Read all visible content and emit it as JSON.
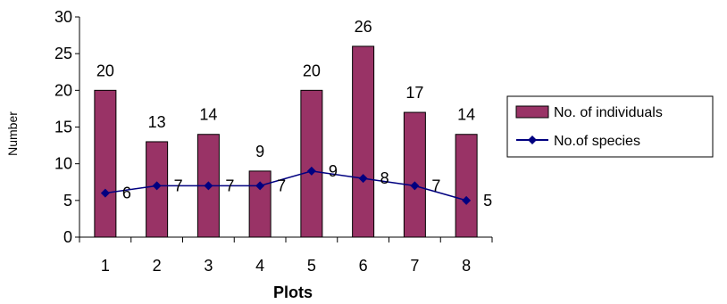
{
  "chart_data": {
    "type": "bar",
    "title": "",
    "xlabel": "Plots",
    "ylabel": "Number",
    "categories": [
      "1",
      "2",
      "3",
      "4",
      "5",
      "6",
      "7",
      "8"
    ],
    "ylim": [
      0,
      30
    ],
    "yticks": [
      0,
      5,
      10,
      15,
      20,
      25,
      30
    ],
    "grid": false,
    "legend_position": "right",
    "series": [
      {
        "name": "No. of individuals",
        "type": "bar",
        "color": "#993366",
        "values": [
          20,
          13,
          14,
          9,
          20,
          26,
          17,
          14
        ]
      },
      {
        "name": "No.of species",
        "type": "line",
        "color": "#000080",
        "marker": "diamond",
        "values": [
          6,
          7,
          7,
          7,
          9,
          8,
          7,
          5
        ]
      }
    ]
  }
}
